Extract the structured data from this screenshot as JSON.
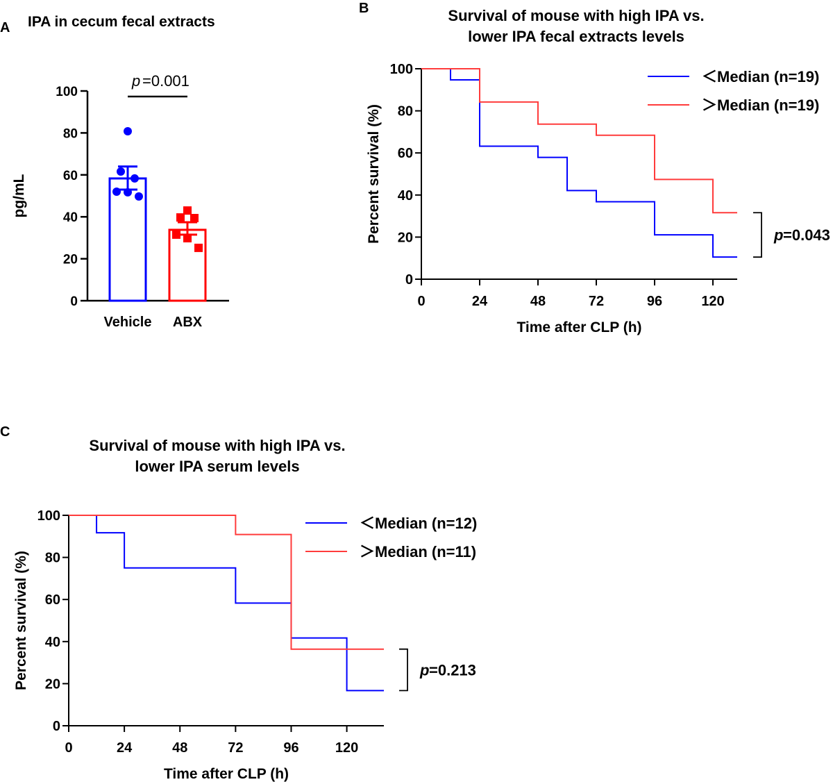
{
  "chart_data": [
    {
      "type": "bar",
      "panel_label": "A",
      "title": "IPA in cecum fecal extracts",
      "ylabel": "pg/mL",
      "xlabel": "",
      "ylim": [
        0,
        100
      ],
      "yticks": [
        0,
        20,
        40,
        60,
        80,
        100
      ],
      "categories": [
        "Vehicle",
        "ABX"
      ],
      "values": [
        58.3,
        33.8
      ],
      "sem": [
        [
          53,
          64
        ],
        [
          31.5,
          37.4
        ]
      ],
      "points": [
        [
          80.8,
          61.6,
          58.3,
          52,
          51.7,
          49.7
        ],
        [
          43,
          39.7,
          39.4,
          31.5,
          29.8,
          25.2
        ]
      ],
      "colors": [
        "#0000ff",
        "#ff0000"
      ],
      "annotation_p_prefix": "p",
      "annotation_p_value": "=0.001"
    },
    {
      "type": "line",
      "subtype": "kaplan-meier",
      "panel_label": "B",
      "title_line1": "Survival of  mouse with high IPA vs.",
      "title_line2": "lower IPA fecal extracts levels",
      "xlabel": "Time after  CLP (h)",
      "ylabel": "Percent survival (%)",
      "xlim": [
        0,
        130
      ],
      "ylim": [
        0,
        100
      ],
      "xticks": [
        0,
        24,
        48,
        72,
        96,
        120
      ],
      "yticks": [
        0,
        20,
        40,
        60,
        80,
        100
      ],
      "legend": "top-right",
      "series": [
        {
          "name": "＜Median  (n=19)",
          "color": "#0000ff",
          "steps": [
            [
              0,
              100
            ],
            [
              12,
              94.7
            ],
            [
              24,
              63.2
            ],
            [
              48,
              57.9
            ],
            [
              60,
              42.1
            ],
            [
              72,
              36.8
            ],
            [
              96,
              21.1
            ],
            [
              120,
              10.5
            ]
          ]
        },
        {
          "name": "＞Median  (n=19)",
          "color": "#ff3b3b",
          "steps": [
            [
              0,
              100
            ],
            [
              24,
              84.2
            ],
            [
              48,
              73.7
            ],
            [
              72,
              68.4
            ],
            [
              96,
              47.4
            ],
            [
              120,
              31.6
            ]
          ]
        }
      ],
      "annotation_p_prefix": "p",
      "annotation_p_value": "=0.043"
    },
    {
      "type": "line",
      "subtype": "kaplan-meier",
      "panel_label": "C",
      "title_line1": "Survival of  mouse with high IPA vs.",
      "title_line2": "lower IPA serum levels",
      "xlabel": "Time after CLP (h)",
      "ylabel": "Percent survival (%)",
      "xlim": [
        0,
        136
      ],
      "ylim": [
        0,
        100
      ],
      "xticks": [
        0,
        24,
        48,
        72,
        96,
        120
      ],
      "yticks": [
        0,
        20,
        40,
        60,
        80,
        100
      ],
      "legend": "top-right",
      "series": [
        {
          "name": "＜Median (n=12)",
          "color": "#0000ff",
          "steps": [
            [
              0,
              100
            ],
            [
              12,
              91.7
            ],
            [
              24,
              75
            ],
            [
              72,
              58.3
            ],
            [
              96,
              41.7
            ],
            [
              120,
              16.7
            ]
          ]
        },
        {
          "name": "＞Median (n=11)",
          "color": "#ff3b3b",
          "steps": [
            [
              0,
              100
            ],
            [
              72,
              90.9
            ],
            [
              96,
              36.4
            ]
          ]
        }
      ],
      "annotation_p_prefix": "p",
      "annotation_p_value": "=0.213"
    }
  ]
}
